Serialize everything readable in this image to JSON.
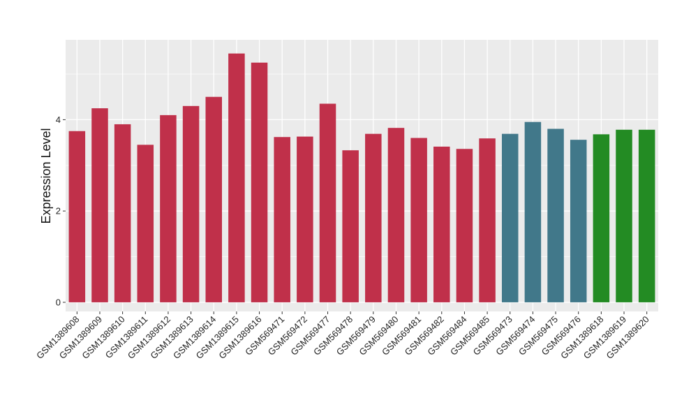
{
  "chart_data": {
    "type": "bar",
    "title": "",
    "xlabel": "",
    "ylabel": "Expression Level",
    "ylim": [
      -0.2,
      5.75
    ],
    "yticks": [
      0,
      2,
      4
    ],
    "grid": true,
    "legend": "none",
    "panel_background": "#ebebeb",
    "grid_color": "#ffffff",
    "colors": {
      "group_red": "#c0304a",
      "group_blue": "#41788a",
      "group_green": "#238b23"
    },
    "categories": [
      "GSM1389608",
      "GSM1389609",
      "GSM1389610",
      "GSM1389611",
      "GSM1389612",
      "GSM1389613",
      "GSM1389614",
      "GSM1389615",
      "GSM1389616",
      "GSM569471",
      "GSM569472",
      "GSM569477",
      "GSM569478",
      "GSM569479",
      "GSM569480",
      "GSM569481",
      "GSM569482",
      "GSM569484",
      "GSM569485",
      "GSM569473",
      "GSM569474",
      "GSM569475",
      "GSM569476",
      "GSM1389618",
      "GSM1389619",
      "GSM1389620"
    ],
    "values": [
      3.75,
      4.25,
      3.9,
      3.45,
      4.1,
      4.3,
      4.5,
      5.45,
      5.25,
      3.62,
      3.63,
      4.35,
      3.33,
      3.69,
      3.82,
      3.6,
      3.41,
      3.36,
      3.59,
      3.69,
      3.95,
      3.8,
      3.56,
      3.68,
      3.78,
      3.78
    ],
    "bar_colors": [
      "#c0304a",
      "#c0304a",
      "#c0304a",
      "#c0304a",
      "#c0304a",
      "#c0304a",
      "#c0304a",
      "#c0304a",
      "#c0304a",
      "#c0304a",
      "#c0304a",
      "#c0304a",
      "#c0304a",
      "#c0304a",
      "#c0304a",
      "#c0304a",
      "#c0304a",
      "#c0304a",
      "#c0304a",
      "#41788a",
      "#41788a",
      "#41788a",
      "#41788a",
      "#238b23",
      "#238b23",
      "#238b23"
    ]
  }
}
